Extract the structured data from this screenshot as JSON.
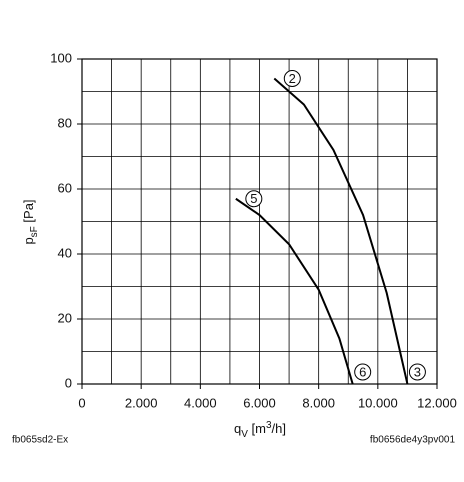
{
  "chart_data": {
    "type": "line",
    "x_label_parts": [
      "q",
      "V",
      " [m",
      "3",
      "/h]"
    ],
    "y_label_parts": [
      "p",
      "sF",
      " [Pa]"
    ],
    "series": [
      {
        "name": "2",
        "end_label": "3",
        "color": "#000000",
        "x": [
          6500,
          7500,
          8500,
          9500,
          10300,
          11000
        ],
        "values": [
          94,
          86,
          72,
          52,
          28,
          0
        ]
      },
      {
        "name": "5",
        "end_label": "6",
        "color": "#000000",
        "x": [
          5200,
          6000,
          7000,
          8000,
          8700,
          9150
        ],
        "values": [
          57,
          52,
          43,
          29,
          14,
          0
        ]
      }
    ],
    "xlim": [
      0,
      12000
    ],
    "ylim": [
      0,
      100
    ],
    "xticks": [
      0,
      {
        "value": 2000,
        "label": "2.000"
      },
      {
        "value": 4000,
        "label": "4.000"
      },
      {
        "value": 6000,
        "label": "6.000"
      },
      {
        "value": 8000,
        "label": "8.000"
      },
      {
        "value": 10000,
        "label": "10.000"
      },
      {
        "value": 12000,
        "label": "12.000"
      }
    ],
    "yticks": [
      0,
      20,
      40,
      60,
      80,
      100
    ],
    "x_minor_grid": [
      1000,
      3000,
      5000,
      7000,
      9000,
      11000
    ],
    "y_minor_grid": [
      10,
      30,
      50,
      70,
      90
    ],
    "grid": true,
    "footer_left": "fb065sd2-Ex",
    "footer_right": "fb0656de4y3pv001"
  }
}
